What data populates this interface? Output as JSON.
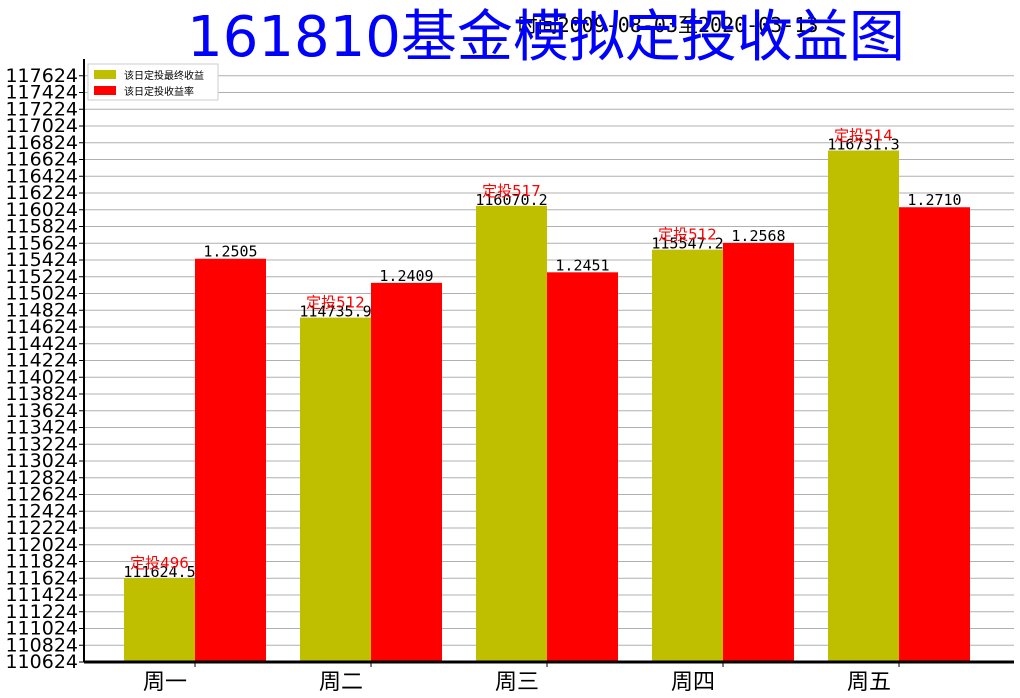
{
  "chart_data": {
    "type": "bar",
    "title": "161810基金模拟定投收益图",
    "subtitle": "时间2009-08-03至2020-03-13",
    "categories": [
      "周一",
      "周二",
      "周三",
      "周四",
      "周五"
    ],
    "series": [
      {
        "name": "该日定投最终收益",
        "color": "#bfbf00",
        "values": [
          111624.5,
          114735.9,
          116070.2,
          115547.2,
          116731.3
        ],
        "labels": [
          "111624.5",
          "114735.9",
          "116070.2",
          "115547.2",
          "116731.3"
        ]
      },
      {
        "name": "该日定投收益率",
        "color": "#ff0000",
        "values": [
          1.2505,
          1.2409,
          1.2451,
          1.2568,
          1.271
        ],
        "labels": [
          "1.2505",
          "1.2409",
          "1.2451",
          "1.2568",
          "1.2710"
        ]
      }
    ],
    "annotations": [
      "定投496",
      "定投512",
      "定投517",
      "定投512",
      "定投514"
    ],
    "y_ticks": [
      "110624",
      "110824",
      "111024",
      "111224",
      "111424",
      "111624",
      "111824",
      "112024",
      "112224",
      "112424",
      "112624",
      "112824",
      "113024",
      "113224",
      "113424",
      "113624",
      "113824",
      "114024",
      "114224",
      "114424",
      "114624",
      "114824",
      "115024",
      "115224",
      "115424",
      "115624",
      "115824",
      "116024",
      "116224",
      "116424",
      "116624",
      "116824",
      "117024",
      "117224",
      "117424",
      "117624"
    ],
    "ylim": [
      110624,
      117824
    ],
    "grid": true,
    "legend_position": "top-left",
    "title_color": "#0000ff",
    "annotation_color": "#ff0000"
  }
}
